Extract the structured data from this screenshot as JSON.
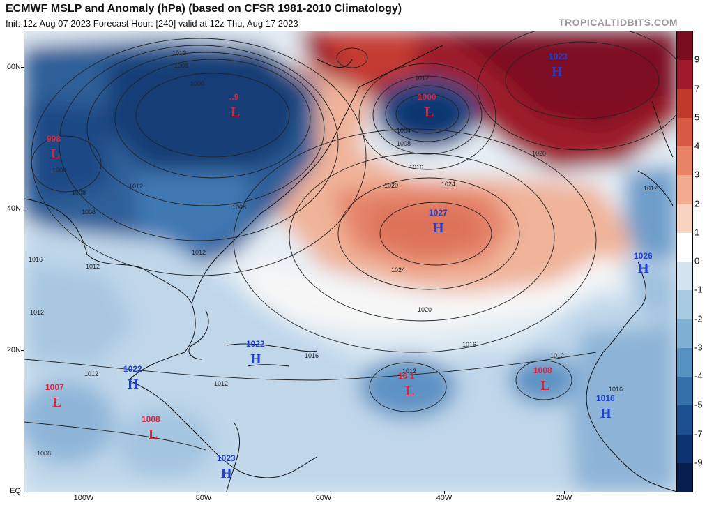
{
  "header": {
    "title": "ECMWF MSLP and Anomaly (hPa) (based on CFSR 1981-2010 Climatology)",
    "subtitle": "Init: 12z Aug 07 2023   Forecast Hour: [240]   valid at 12z Thu, Aug 17 2023",
    "brand": "TROPICALTIDBITS.COM"
  },
  "colorbar": {
    "labels": [
      "9",
      "7",
      "5",
      "4",
      "3",
      "2",
      "1",
      "0",
      "-1",
      "-2",
      "-3",
      "-4",
      "-5",
      "-7",
      "-9"
    ],
    "colors": [
      "#7a0d1f",
      "#a0192b",
      "#c0392b",
      "#d85a45",
      "#e88367",
      "#f2ab8f",
      "#f8d3c1",
      "#ffffff",
      "#d3e3ef",
      "#a9cbe2",
      "#7fb0d3",
      "#5591c1",
      "#3570aa",
      "#1c4f8f",
      "#0d3470",
      "#081f4d"
    ]
  },
  "axes": {
    "lat_labels": [
      "60N",
      "40N",
      "20N",
      "EQ"
    ],
    "lon_labels": [
      "100W",
      "80W",
      "60W",
      "40W",
      "20W"
    ]
  },
  "pressure_centers": [
    {
      "type": "H",
      "value": "1023"
    },
    {
      "type": "L",
      "value": "1000"
    },
    {
      "type": "L",
      "value": "998"
    },
    {
      "type": "L",
      "value": "..9"
    },
    {
      "type": "H",
      "value": "1027"
    },
    {
      "type": "H",
      "value": "1026"
    },
    {
      "type": "H",
      "value": "1022"
    },
    {
      "type": "H",
      "value": "1022"
    },
    {
      "type": "L",
      "value": "1007"
    },
    {
      "type": "L",
      "value": "1008"
    },
    {
      "type": "L",
      "value": "10 1"
    },
    {
      "type": "L",
      "value": "1008"
    },
    {
      "type": "H",
      "value": "1016"
    },
    {
      "type": "H",
      "value": "1023"
    }
  ],
  "isobar_labels": [
    "1012",
    "1008",
    "1000",
    "1004",
    "1008",
    "1012",
    "1012",
    "1008",
    "1012",
    "1004",
    "1008",
    "1016",
    "1012",
    "1020",
    "1024",
    "1020",
    "1024",
    "1020",
    "1016",
    "1016",
    "1012",
    "1012",
    "1012",
    "1008",
    "1016",
    "1012",
    "1008",
    "1012",
    "1016",
    "1012"
  ]
}
